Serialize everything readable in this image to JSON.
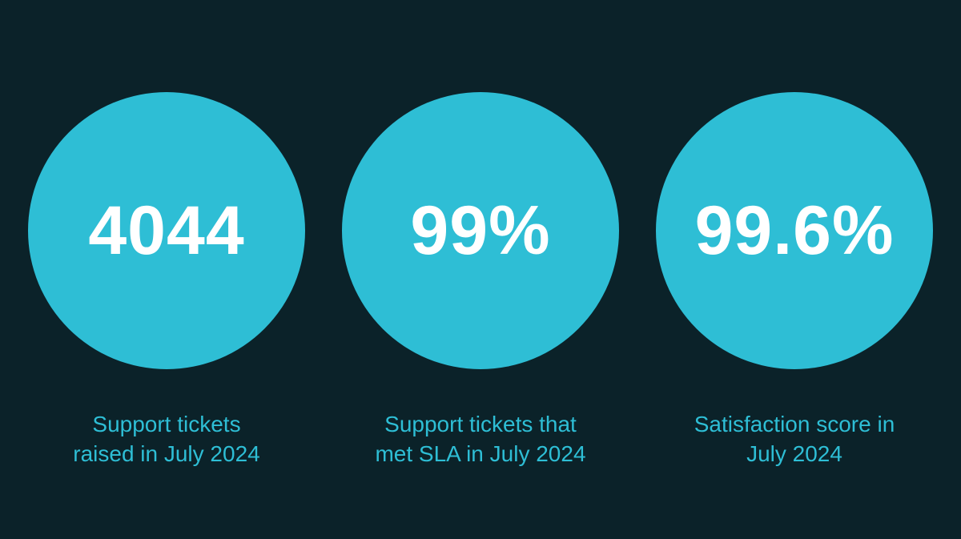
{
  "colors": {
    "background": "#0b2229",
    "accent": "#2ebed5",
    "value_text": "#ffffff"
  },
  "stats": [
    {
      "value": "4044",
      "caption_lines": [
        "Support tickets",
        "raised in July 2024"
      ]
    },
    {
      "value": "99%",
      "caption_lines": [
        "Support tickets that",
        "met SLA in July 2024"
      ]
    },
    {
      "value": "99.6%",
      "caption_lines": [
        "Satisfaction score in",
        "July 2024"
      ]
    }
  ]
}
